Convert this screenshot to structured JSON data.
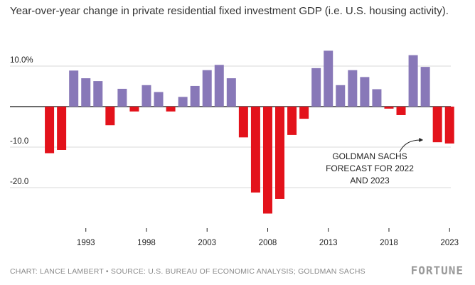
{
  "chart_data": {
    "type": "bar",
    "title": "Year-over-year change in private residential fixed investment GDP (i.e. U.S. housing activity).",
    "xlabel": "",
    "ylabel": "",
    "ylim": [
      -27,
      15
    ],
    "y_ticks": [
      {
        "value": 10,
        "label": "10.0%"
      },
      {
        "value": 0,
        "label": ""
      },
      {
        "value": -10,
        "label": "-10.0"
      },
      {
        "value": -20,
        "label": "-20.0"
      }
    ],
    "x_ticks": [
      "1993",
      "1998",
      "2003",
      "2008",
      "2013",
      "2018",
      "2023"
    ],
    "categories": [
      "1989",
      "1990",
      "1991",
      "1992",
      "1993",
      "1994",
      "1995",
      "1996",
      "1997",
      "1998",
      "1999",
      "2000",
      "2001",
      "2002",
      "2003",
      "2004",
      "2005",
      "2006",
      "2007",
      "2008",
      "2009",
      "2010",
      "2011",
      "2012",
      "2013",
      "2014",
      "2015",
      "2016",
      "2017",
      "2018",
      "2019",
      "2020",
      "2021",
      "2022",
      "2023"
    ],
    "values": [
      0,
      -11.5,
      -10.7,
      8.9,
      7.0,
      6.3,
      -4.6,
      4.4,
      -1.2,
      5.3,
      3.6,
      -1.2,
      2.4,
      5.1,
      9.0,
      10.3,
      7.0,
      -7.6,
      -21.2,
      -26.4,
      -22.8,
      -7.0,
      -3.0,
      9.5,
      13.8,
      5.3,
      9.0,
      7.3,
      4.3,
      -0.5,
      -2.1,
      12.7,
      9.8,
      -8.8,
      -9.1
    ],
    "positive_color": "#8878b8",
    "negative_color": "#e3121b",
    "annotation": [
      "GOLDMAN SACHS",
      "FORECAST FOR 2022",
      "AND 2023"
    ]
  },
  "footer": {
    "source": "CHART: LANCE LAMBERT • SOURCE: U.S. BUREAU OF ECONOMIC ANALYSIS; GOLDMAN SACHS",
    "logo": "FORTUNE"
  }
}
